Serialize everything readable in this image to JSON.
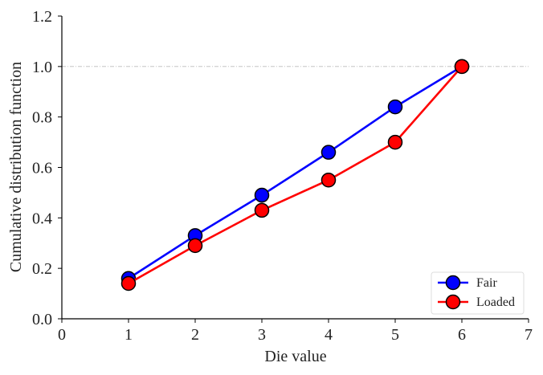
{
  "chart_data": {
    "type": "line",
    "xlabel": "Die value",
    "ylabel": "Cumulative distribution function",
    "xlim": [
      0,
      7
    ],
    "ylim": [
      0,
      1.2
    ],
    "x_ticks": [
      "0",
      "1",
      "2",
      "3",
      "4",
      "5",
      "6",
      "7"
    ],
    "y_ticks": [
      "0.0",
      "0.2",
      "0.4",
      "0.6",
      "0.8",
      "1.0",
      "1.2"
    ],
    "reference_line": {
      "y": 1.0,
      "style": "dash-dot",
      "color": "#bbbbbb"
    },
    "grid": false,
    "legend_position": "lower-right",
    "series": [
      {
        "name": "Fair",
        "color": "#0000ff",
        "x": [
          1,
          2,
          3,
          4,
          5,
          6
        ],
        "y": [
          0.16,
          0.33,
          0.49,
          0.66,
          0.84,
          1.0
        ]
      },
      {
        "name": "Loaded",
        "color": "#ff0000",
        "x": [
          1,
          2,
          3,
          4,
          5,
          6
        ],
        "y": [
          0.14,
          0.29,
          0.43,
          0.55,
          0.7,
          1.0
        ]
      }
    ]
  }
}
